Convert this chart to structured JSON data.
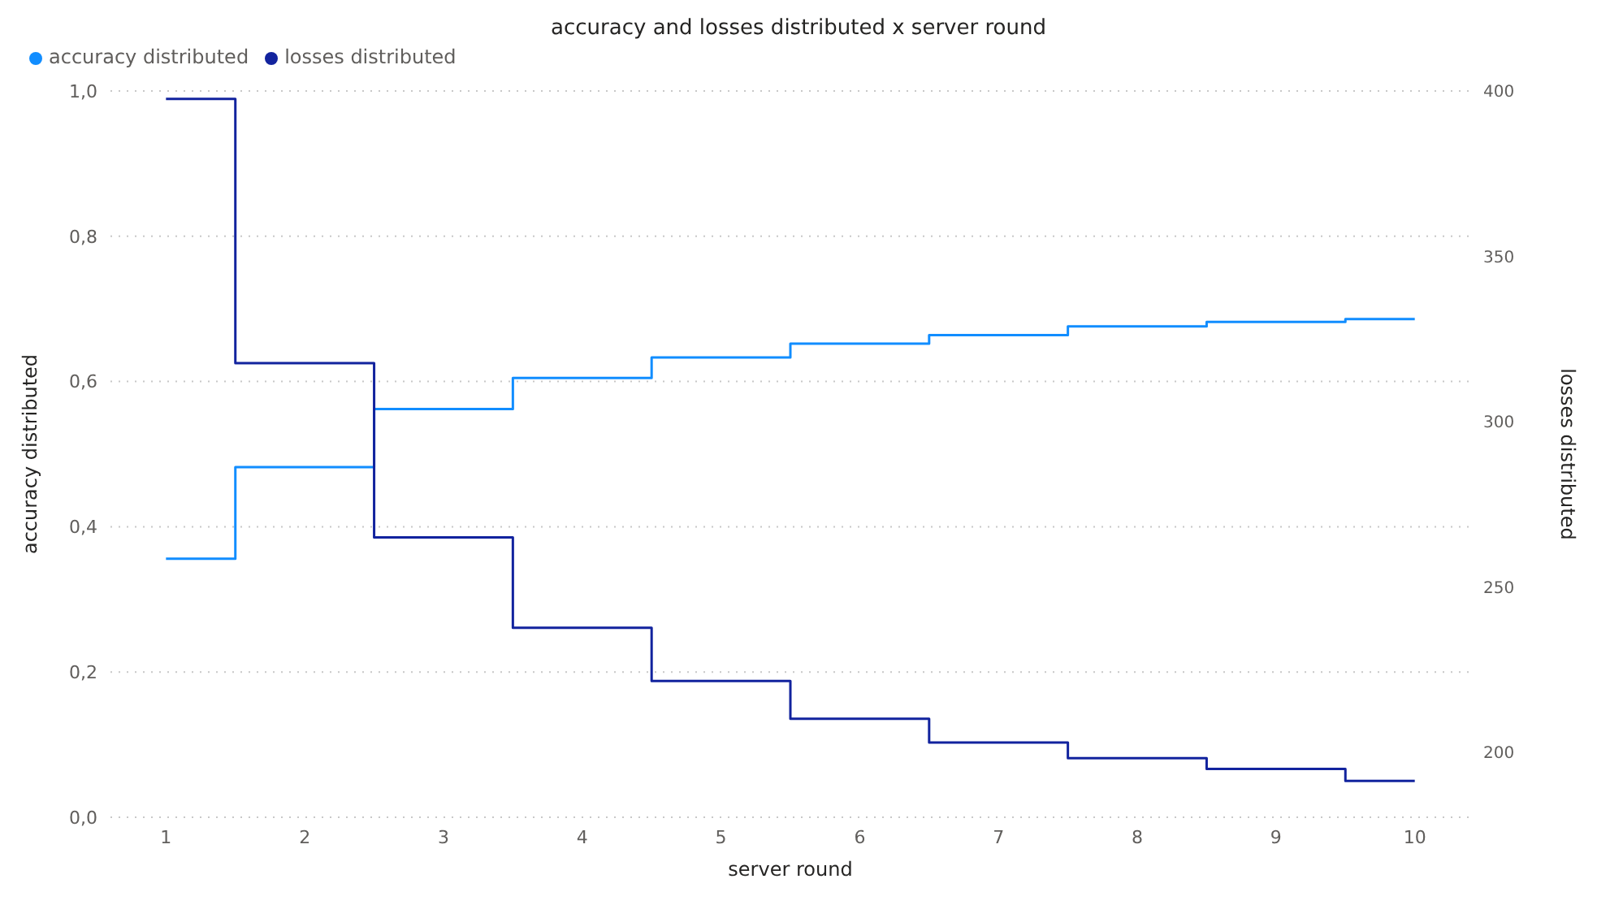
{
  "chart_data": {
    "type": "step",
    "title": "accuracy and losses distributed x server round",
    "xlabel": "server round",
    "ylabel": "accuracy distributed",
    "y2label": "losses distributed",
    "x": [
      1,
      2,
      3,
      4,
      5,
      6,
      7,
      8,
      9,
      10
    ],
    "series": [
      {
        "name": "accuracy distributed",
        "color": "#118dff",
        "values": [
          0.356,
          0.482,
          0.562,
          0.605,
          0.633,
          0.652,
          0.664,
          0.676,
          0.682,
          0.686
        ]
      },
      {
        "name": "losses distributed",
        "color": "#12239e",
        "axis": "y2",
        "values": [
          397.6,
          317.7,
          265.0,
          237.7,
          221.6,
          210.2,
          203.0,
          198.3,
          195.0,
          191.4
        ]
      }
    ],
    "xlim": [
      0.6,
      10.4
    ],
    "xticks": [
      1,
      2,
      3,
      4,
      5,
      6,
      7,
      8,
      9,
      10
    ],
    "ylim": [
      0,
      1
    ],
    "yticks": [
      {
        "value": 0,
        "label": "0,0"
      },
      {
        "value": 0.2,
        "label": "0,2"
      },
      {
        "value": 0.4,
        "label": "0,4"
      },
      {
        "value": 0.6,
        "label": "0,6"
      },
      {
        "value": 0.8,
        "label": "0,8"
      },
      {
        "value": 1,
        "label": "1,0"
      }
    ],
    "y2lim": [
      180.4,
      400
    ],
    "y2ticks": [
      200,
      250,
      300,
      350,
      400
    ],
    "grid": "y",
    "legend": "top left",
    "marker": "none",
    "line_style": "solid"
  }
}
